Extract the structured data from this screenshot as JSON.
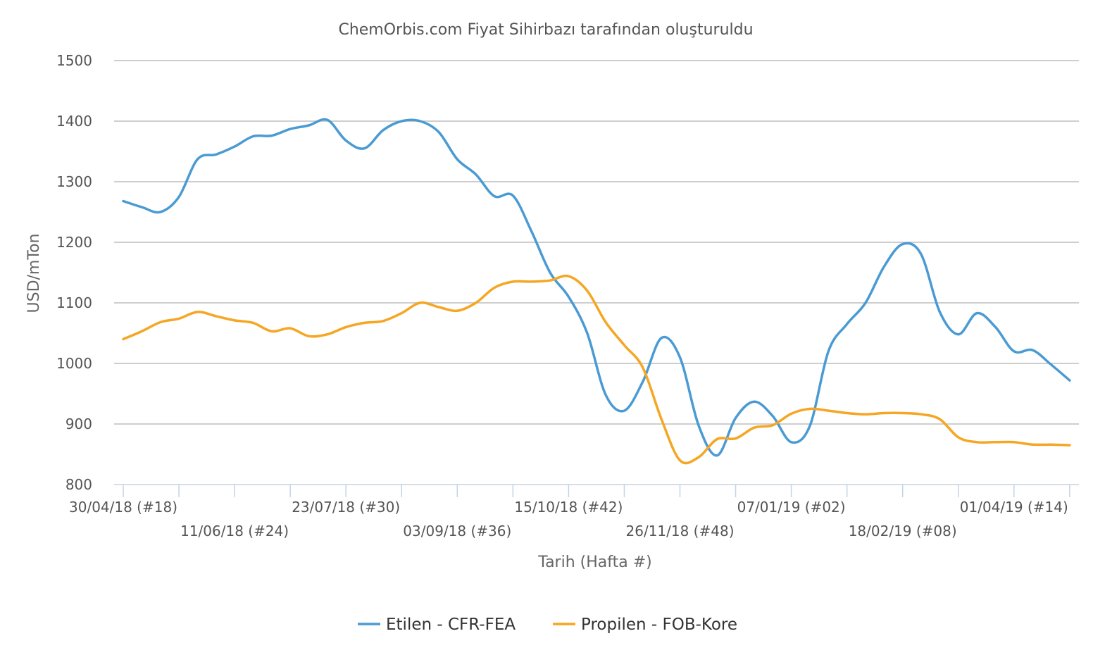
{
  "chart_data": {
    "type": "line",
    "title": "ChemOrbis.com Fiyat Sihirbazı tarafından oluşturuldu",
    "xlabel": "Tarih (Hafta #)",
    "ylabel": "USD/mTon",
    "ylim": [
      800,
      1500
    ],
    "yticks": [
      800,
      900,
      1000,
      1100,
      1200,
      1300,
      1400,
      1500
    ],
    "grid": true,
    "legend_position": "bottom",
    "x_tick_labels": [
      {
        "label": "30/04/18 (#18)",
        "week_index": 0
      },
      {
        "label": "11/06/18 (#24)",
        "week_index": 6
      },
      {
        "label": "23/07/18 (#30)",
        "week_index": 12
      },
      {
        "label": "03/09/18 (#36)",
        "week_index": 18
      },
      {
        "label": "15/10/18 (#42)",
        "week_index": 24
      },
      {
        "label": "26/11/18 (#48)",
        "week_index": 30
      },
      {
        "label": "07/01/19 (#02)",
        "week_index": 36
      },
      {
        "label": "18/02/19 (#08)",
        "week_index": 42
      },
      {
        "label": "01/04/19 (#14)",
        "week_index": 48
      }
    ],
    "x_minor_tick_week_indices": [
      0,
      3,
      6,
      9,
      12,
      15,
      18,
      21,
      24,
      27,
      30,
      33,
      36,
      39,
      42,
      45,
      48,
      51
    ],
    "series": [
      {
        "name": "Etilen - CFR-FEA",
        "color": "#4a9bd3",
        "points": [
          [
            0,
            1268
          ],
          [
            1,
            1258
          ],
          [
            2,
            1250
          ],
          [
            3,
            1275
          ],
          [
            4,
            1337
          ],
          [
            5,
            1345
          ],
          [
            6,
            1358
          ],
          [
            7,
            1375
          ],
          [
            8,
            1376
          ],
          [
            9,
            1387
          ],
          [
            10,
            1393
          ],
          [
            11,
            1402
          ],
          [
            12,
            1368
          ],
          [
            13,
            1355
          ],
          [
            14,
            1385
          ],
          [
            15,
            1400
          ],
          [
            16,
            1400
          ],
          [
            17,
            1382
          ],
          [
            18,
            1337
          ],
          [
            19,
            1312
          ],
          [
            20,
            1276
          ],
          [
            21,
            1277
          ],
          [
            22,
            1218
          ],
          [
            23,
            1150
          ],
          [
            24,
            1110
          ],
          [
            25,
            1050
          ],
          [
            26,
            948
          ],
          [
            27,
            922
          ],
          [
            28,
            970
          ],
          [
            29,
            1042
          ],
          [
            30,
            1010
          ],
          [
            31,
            898
          ],
          [
            32,
            848
          ],
          [
            33,
            910
          ],
          [
            34,
            937
          ],
          [
            35,
            913
          ],
          [
            36,
            870
          ],
          [
            37,
            897
          ],
          [
            38,
            1020
          ],
          [
            39,
            1065
          ],
          [
            40,
            1100
          ],
          [
            41,
            1160
          ],
          [
            42,
            1197
          ],
          [
            43,
            1180
          ],
          [
            44,
            1085
          ],
          [
            45,
            1048
          ],
          [
            46,
            1083
          ],
          [
            47,
            1060
          ],
          [
            48,
            1020
          ],
          [
            49,
            1022
          ],
          [
            50,
            998
          ],
          [
            51,
            972
          ]
        ]
      },
      {
        "name": "Propilen - FOB-Kore",
        "color": "#f5a623",
        "points": [
          [
            0,
            1040
          ],
          [
            1,
            1053
          ],
          [
            2,
            1068
          ],
          [
            3,
            1074
          ],
          [
            4,
            1085
          ],
          [
            5,
            1078
          ],
          [
            6,
            1071
          ],
          [
            7,
            1067
          ],
          [
            8,
            1053
          ],
          [
            9,
            1058
          ],
          [
            10,
            1045
          ],
          [
            11,
            1048
          ],
          [
            12,
            1060
          ],
          [
            13,
            1067
          ],
          [
            14,
            1070
          ],
          [
            15,
            1083
          ],
          [
            16,
            1100
          ],
          [
            17,
            1093
          ],
          [
            18,
            1087
          ],
          [
            19,
            1100
          ],
          [
            20,
            1125
          ],
          [
            21,
            1135
          ],
          [
            22,
            1135
          ],
          [
            23,
            1137
          ],
          [
            24,
            1144
          ],
          [
            25,
            1120
          ],
          [
            26,
            1068
          ],
          [
            27,
            1030
          ],
          [
            28,
            993
          ],
          [
            29,
            908
          ],
          [
            30,
            840
          ],
          [
            31,
            845
          ],
          [
            32,
            875
          ],
          [
            33,
            876
          ],
          [
            34,
            894
          ],
          [
            35,
            898
          ],
          [
            36,
            917
          ],
          [
            37,
            925
          ],
          [
            38,
            922
          ],
          [
            39,
            918
          ],
          [
            40,
            916
          ],
          [
            41,
            918
          ],
          [
            42,
            918
          ],
          [
            43,
            916
          ],
          [
            44,
            908
          ],
          [
            45,
            878
          ],
          [
            46,
            870
          ],
          [
            47,
            870
          ],
          [
            48,
            870
          ],
          [
            49,
            866
          ],
          [
            50,
            866
          ],
          [
            51,
            865
          ]
        ]
      }
    ]
  }
}
